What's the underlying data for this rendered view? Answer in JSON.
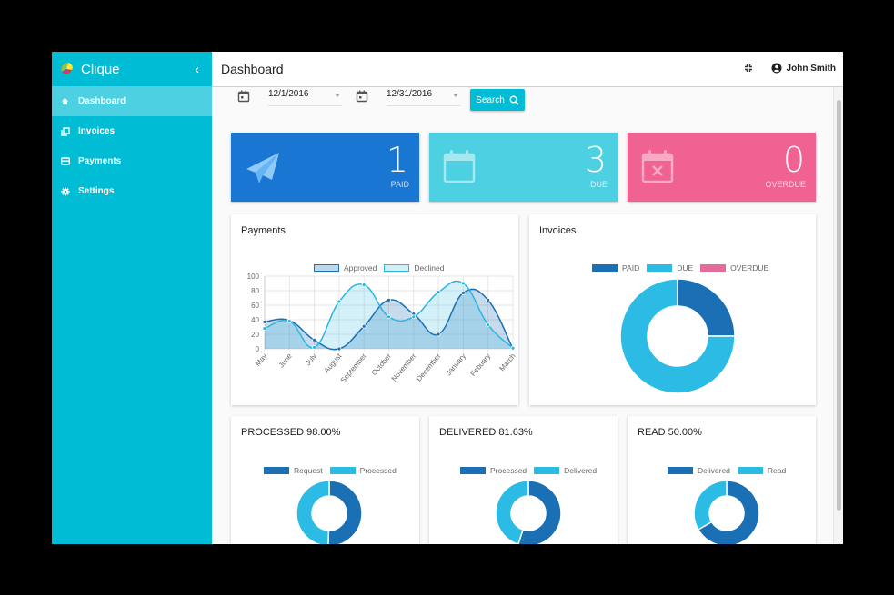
{
  "sidebar": {
    "brand": "Clique",
    "collapse_icon": "chevron-left-icon",
    "items": [
      {
        "label": "Dashboard",
        "icon": "home-icon",
        "active": true
      },
      {
        "label": "Invoices",
        "icon": "invoices-icon",
        "active": false
      },
      {
        "label": "Payments",
        "icon": "credit-card-icon",
        "active": false
      },
      {
        "label": "Settings",
        "icon": "gear-icon",
        "active": false
      }
    ]
  },
  "topbar": {
    "title": "Dashboard",
    "fullscreen_icon": "fullscreen-exit-icon",
    "user": "John Smith"
  },
  "filters": {
    "start_date": "12/1/2016",
    "end_date": "12/31/2016",
    "search_label": "Search"
  },
  "stats": [
    {
      "value": "1",
      "label": "PAID",
      "color": "#1976d2",
      "icon": "paper-plane-icon"
    },
    {
      "value": "3",
      "label": "DUE",
      "color": "#4dd0e1",
      "icon": "calendar-icon"
    },
    {
      "value": "0",
      "label": "OVERDUE",
      "color": "#f06292",
      "icon": "calendar-x-icon"
    }
  ],
  "cards": {
    "payments": {
      "title": "Payments"
    },
    "invoices": {
      "title": "Invoices"
    },
    "processed": {
      "title": "PROCESSED 98.00%"
    },
    "delivered": {
      "title": "DELIVERED 81.63%"
    },
    "read": {
      "title": "READ 50.00%"
    }
  },
  "chart_data": [
    {
      "type": "line",
      "title": "Payments",
      "categories": [
        "May",
        "June",
        "July",
        "August",
        "September",
        "October",
        "November",
        "December",
        "January",
        "Febuary",
        "March"
      ],
      "series": [
        {
          "name": "Approved",
          "values": [
            37,
            39,
            12,
            0,
            31,
            67,
            48,
            20,
            77,
            67,
            0
          ],
          "color": "#1a6fb5"
        },
        {
          "name": "Declined",
          "values": [
            28,
            38,
            2,
            65,
            88,
            44,
            44,
            78,
            90,
            33,
            1
          ],
          "color": "#29b6e0"
        }
      ],
      "ylim": [
        0,
        100
      ],
      "yticks": [
        0,
        20,
        40,
        60,
        80,
        100
      ],
      "legend_position": "top",
      "grid": true
    },
    {
      "type": "pie",
      "title": "Invoices",
      "categories": [
        "PAID",
        "DUE",
        "OVERDUE"
      ],
      "values": [
        1,
        3,
        0
      ],
      "colors": [
        "#1a6fb5",
        "#2bbbe4",
        "#e66b9a"
      ],
      "legend_position": "top"
    },
    {
      "type": "pie",
      "title": "PROCESSED 98.00%",
      "categories": [
        "Request",
        "Processed"
      ],
      "values": [
        50,
        49
      ],
      "colors": [
        "#1a6fb5",
        "#2bbbe4"
      ]
    },
    {
      "type": "pie",
      "title": "DELIVERED 81.63%",
      "categories": [
        "Processed",
        "Delivered"
      ],
      "values": [
        49,
        40
      ],
      "colors": [
        "#1a6fb5",
        "#2bbbe4"
      ]
    },
    {
      "type": "pie",
      "title": "READ 50.00%",
      "categories": [
        "Delivered",
        "Read"
      ],
      "values": [
        40,
        20
      ],
      "colors": [
        "#1a6fb5",
        "#2bbbe4"
      ]
    }
  ]
}
